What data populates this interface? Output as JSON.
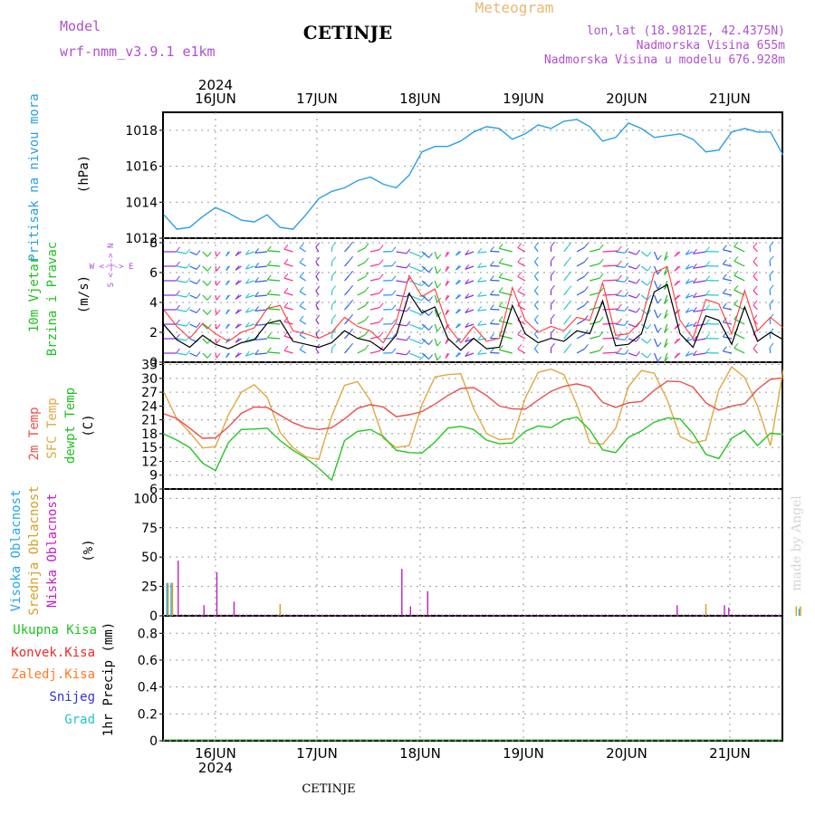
{
  "header": {
    "model_label": "Model",
    "model_name": "wrf-nmm_v3.9.1  e1km",
    "title": "CETINJE",
    "product": "Meteogram",
    "lonlat": "lon,lat (18.9812E, 42.4375N)",
    "elevation": "Nadmorska Visina 655m",
    "model_elevation": "Nadmorska Visina u modelu 676.928m",
    "watermark": "made by Angel",
    "footer_station": "CETINJE"
  },
  "time_axis": {
    "year": "2024",
    "day_labels": [
      "16JUN",
      "17JUN",
      "18JUN",
      "19JUN",
      "20JUN",
      "21JUN"
    ]
  },
  "panels": {
    "pressure": {
      "label": "Pritisak na nivou mora",
      "unit": "(hPa)",
      "ticks": [
        "1012",
        "1014",
        "1016",
        "1018"
      ]
    },
    "wind": {
      "label1": "10m Vjetar",
      "label2": "Brzina i Pravac",
      "unit": "(m/s)",
      "ticks": [
        "0",
        "2",
        "4",
        "6",
        "8"
      ],
      "compass_ns": "S <-|-> N",
      "compass_we": "W <-|-> E"
    },
    "temp": {
      "label1": "2m Temp",
      "label2": "SFC Temp",
      "label3": "dewpt Temp",
      "unit": "(C)",
      "ticks": [
        "6",
        "9",
        "12",
        "15",
        "18",
        "21",
        "24",
        "27",
        "30",
        "33"
      ]
    },
    "cloud": {
      "label1": "Visoka Oblacnost",
      "label2": "Srednja Oblacnost",
      "label3": "Niska Oblacnost",
      "unit": "(%)",
      "ticks": [
        "0",
        "25",
        "50",
        "75",
        "100"
      ]
    },
    "precip": {
      "legend": [
        "Ukupna Kisa",
        "Konvek.Kisa",
        "Zaledj.Kisa",
        "Snijeg",
        "Grad"
      ],
      "unit": "1hr Precip (mm)",
      "ticks": [
        "0",
        "0.2",
        "0.4",
        "0.6",
        "0.8"
      ]
    }
  },
  "colors": {
    "pressure": "#2aa0e0",
    "wind_speed": "#000000",
    "wind_gust": "#ff3a3a",
    "t2m": "#e8504a",
    "sfc": "#e0a840",
    "dewpt": "#20c820",
    "high_cloud": "#22a8e8",
    "mid_cloud": "#d4a020",
    "low_cloud": "#c020c0",
    "prec_total": "#20c020",
    "prec_conv": "#f02828",
    "prec_frz": "#ff7a20",
    "prec_snow": "#3030e0",
    "prec_grad": "#20c8c8",
    "title_model": "#b050d0",
    "title_meteogram": "#e8b870"
  },
  "chart_data": [
    {
      "type": "line",
      "title": "Pritisak na nivou mora",
      "ylabel": "hPa",
      "ylim": [
        1012,
        1019
      ],
      "x_start": "2024-06-15 12:00",
      "x_step_hours": 3,
      "series": [
        {
          "values": [
            1013.3,
            1012.5,
            1012.6,
            1013.2,
            1013.7,
            1013.4,
            1013.0,
            1012.9,
            1013.3,
            1012.6,
            1012.5,
            1013.3,
            1014.2,
            1014.6,
            1014.8,
            1015.2,
            1015.4,
            1015.0,
            1014.8,
            1015.5,
            1016.8,
            1017.1,
            1017.1,
            1017.4,
            1017.9,
            1018.2,
            1018.1,
            1017.5,
            1017.8,
            1018.3,
            1018.1,
            1018.5,
            1018.6,
            1018.2,
            1017.4,
            1017.6,
            1018.4,
            1018.1,
            1017.6,
            1017.7,
            1017.8,
            1017.5,
            1016.8,
            1016.9,
            1017.9,
            1018.1,
            1017.9,
            1017.9,
            1016.6
          ]
        }
      ]
    },
    {
      "type": "line",
      "title": "10m Vjetar Brzina i Pravac",
      "ylabel": "m/s",
      "ylim": [
        0,
        8
      ],
      "x_start": "2024-06-15 12:00",
      "x_step_hours": 3,
      "series": [
        {
          "values": [
            2.5,
            1.5,
            1.0,
            1.8,
            1.2,
            0.9,
            1.3,
            1.5,
            2.6,
            2.8,
            1.4,
            1.2,
            1.0,
            1.3,
            2.1,
            1.6,
            1.4,
            0.8,
            1.8,
            4.6,
            3.3,
            3.7,
            1.6,
            0.8,
            1.6,
            0.9,
            1.0,
            3.8,
            1.9,
            1.3,
            1.6,
            1.4,
            2.1,
            1.9,
            4.1,
            1.1,
            1.2,
            1.9,
            4.7,
            5.2,
            1.9,
            1.0,
            3.1,
            2.8,
            1.2,
            3.7,
            1.4,
            2.0,
            1.5
          ]
        },
        {
          "values": [
            3.5,
            2.4,
            1.6,
            2.6,
            1.9,
            1.4,
            2.0,
            2.3,
            3.6,
            3.8,
            2.1,
            1.9,
            1.6,
            2.0,
            3.0,
            2.4,
            2.1,
            1.3,
            2.7,
            5.8,
            4.4,
            4.9,
            2.4,
            1.3,
            2.4,
            1.4,
            1.6,
            5.0,
            2.8,
            2.0,
            2.4,
            2.1,
            3.0,
            2.8,
            5.3,
            1.8,
            1.9,
            2.8,
            6.0,
            6.4,
            2.8,
            1.6,
            4.2,
            3.9,
            1.9,
            4.8,
            2.1,
            3.0,
            2.3
          ]
        }
      ]
    },
    {
      "type": "line",
      "title": "Temperature",
      "ylabel": "C",
      "ylim": [
        6,
        33
      ],
      "x_start": "2024-06-15 12:00",
      "x_step_hours": 3,
      "series": [
        {
          "values": [
            22.3,
            21.3,
            19.2,
            17.0,
            17.1,
            19.5,
            22.4,
            23.8,
            23.7,
            22.0,
            20.4,
            19.3,
            18.9,
            19.3,
            21.2,
            23.5,
            24.3,
            23.8,
            21.7,
            22.1,
            22.8,
            24.4,
            26.3,
            27.8,
            28.0,
            26.3,
            24.0,
            23.4,
            23.3,
            25.3,
            27.2,
            28.3,
            28.8,
            28.1,
            24.8,
            23.7,
            24.7,
            25.0,
            27.4,
            29.4,
            29.3,
            28.1,
            24.7,
            23.1,
            24.0,
            24.5,
            27.6,
            29.8,
            30.1
          ]
        },
        {
          "values": [
            27.0,
            21.2,
            18.3,
            14.9,
            15.2,
            22.1,
            27.0,
            28.6,
            25.9,
            18.3,
            15.0,
            13.0,
            12.4,
            21.8,
            28.5,
            29.3,
            25.2,
            17.0,
            15.0,
            15.4,
            24.3,
            30.3,
            30.8,
            31.0,
            23.5,
            18.0,
            16.7,
            16.9,
            25.7,
            31.3,
            32.0,
            30.8,
            24.3,
            16.0,
            15.7,
            19.1,
            28.2,
            31.7,
            31.1,
            25.3,
            17.4,
            16.0,
            16.6,
            27.5,
            32.5,
            30.2,
            24.0,
            15.4,
            32.0
          ]
        },
        {
          "values": [
            17.9,
            16.6,
            15.0,
            11.6,
            10.0,
            16.1,
            18.9,
            19.0,
            19.2,
            16.5,
            14.4,
            12.7,
            10.5,
            7.9,
            16.5,
            18.5,
            18.9,
            17.4,
            14.4,
            13.9,
            13.8,
            16.2,
            19.2,
            19.6,
            18.9,
            16.6,
            15.8,
            16.0,
            18.5,
            19.7,
            19.3,
            21.0,
            21.6,
            18.8,
            14.5,
            13.9,
            17.2,
            18.6,
            20.5,
            21.4,
            21.2,
            18.0,
            13.5,
            12.6,
            17.0,
            18.7,
            15.4,
            18.1,
            17.8
          ]
        }
      ]
    },
    {
      "type": "bar",
      "title": "Oblacnost",
      "ylabel": "%",
      "ylim": [
        0,
        100
      ],
      "x_start": "2024-06-15 12:00",
      "x_step_hours": 1,
      "series": [
        {
          "points": [
            [
              1,
              28
            ],
            [
              2,
              28
            ],
            [
              148,
              6
            ]
          ]
        },
        {
          "points": [
            [
              1,
              28
            ],
            [
              2,
              28
            ],
            [
              27,
              10
            ],
            [
              126,
              10
            ],
            [
              147,
              8
            ],
            [
              148,
              8
            ]
          ]
        },
        {
          "points": [
            [
              3,
              47
            ],
            [
              9,
              9
            ],
            [
              12,
              37
            ],
            [
              16,
              12
            ],
            [
              55,
              40
            ],
            [
              57,
              8
            ],
            [
              61,
              21
            ],
            [
              119,
              9
            ],
            [
              130,
              9
            ],
            [
              131,
              7
            ],
            [
              222,
              8
            ],
            [
              232,
              100
            ],
            [
              238,
              10
            ],
            [
              273,
              18
            ],
            [
              275,
              7
            ],
            [
              277,
              21
            ],
            [
              279,
              8
            ],
            [
              282,
              4
            ]
          ]
        }
      ]
    },
    {
      "type": "bar",
      "title": "1hr Precip",
      "ylabel": "mm",
      "ylim": [
        0,
        0.9
      ],
      "x_start": "2024-06-15 12:00",
      "x_step_hours": 1,
      "series": [
        {
          "points": []
        }
      ]
    }
  ]
}
